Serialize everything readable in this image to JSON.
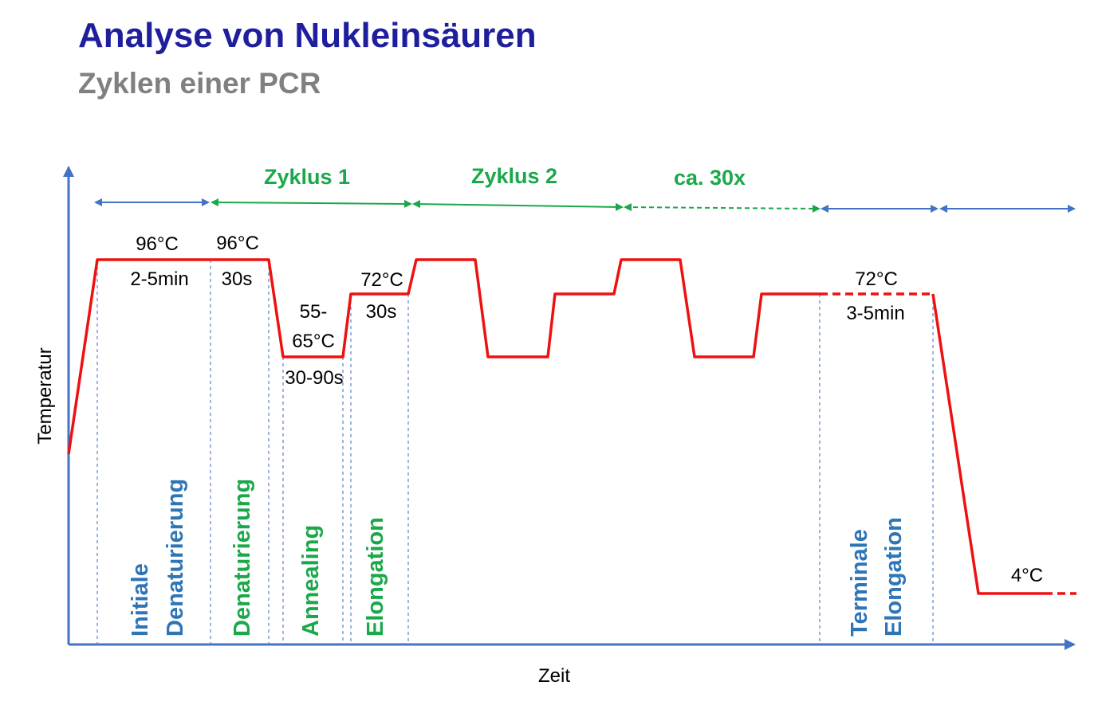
{
  "header": {
    "title": "Analyse von Nukleinsäuren",
    "subtitle": "Zyklen einer PCR"
  },
  "axes": {
    "x_label": "Zeit",
    "y_label": "Temperatur"
  },
  "cycles": {
    "cycle1": "Zyklus 1",
    "cycle2": "Zyklus 2",
    "repeat": "ca. 30x"
  },
  "steps": {
    "initial_temp": "96°C",
    "initial_time": "2-5min",
    "denat_temp": "96°C",
    "denat_time": "30s",
    "anneal_temp_1": "55-",
    "anneal_temp_2": "65°C",
    "anneal_time": "30-90s",
    "elong_temp": "72°C",
    "elong_time": "30s",
    "terminal_temp": "72°C",
    "terminal_time": "3-5min",
    "hold_temp": "4°C"
  },
  "phases": {
    "initial_1": "Initiale",
    "initial_2": "Denaturierung",
    "denaturation": "Denaturierung",
    "annealing": "Annealing",
    "elongation": "Elongation",
    "terminal_1": "Terminale",
    "terminal_2": "Elongation"
  },
  "colors": {
    "title": "#1f1f9e",
    "subtitle": "#808080",
    "curve": "#ee1111",
    "blue": "#2e75b6",
    "axis_blue": "#4472c4",
    "green": "#1aa84a"
  }
}
